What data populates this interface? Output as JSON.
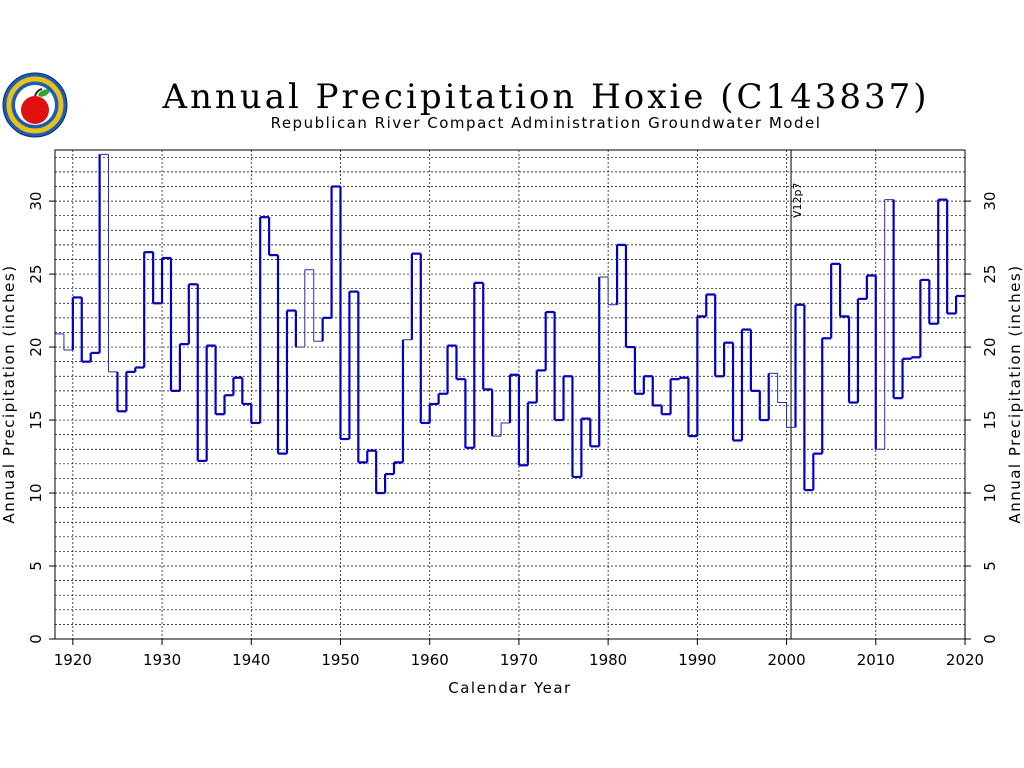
{
  "chart_data": {
    "type": "line",
    "step": true,
    "title": "Annual Precipitation Hoxie (C143837)",
    "subtitle": "Republican River Compact Administration Groundwater Model",
    "xlabel": "Calendar Year",
    "ylabel": "Annual Precipitation (inches)",
    "xlim": [
      1918,
      2020
    ],
    "ylim": [
      0,
      33.5
    ],
    "x_ticks": [
      "1920",
      "1930",
      "1940",
      "1950",
      "1960",
      "1970",
      "1980",
      "1990",
      "2000",
      "2010",
      "2020"
    ],
    "y_ticks": [
      "0",
      "5",
      "10",
      "15",
      "20",
      "25",
      "30"
    ],
    "grid": true,
    "colors": {
      "series_thick": "#0000c0",
      "series_thin": "#2a2aa8",
      "grid": "#000000"
    },
    "vertical_marker": {
      "x": 2000.5,
      "label": "V12p7"
    },
    "series": [
      {
        "x": [
          1918,
          1919,
          1920,
          1921,
          1922,
          1923,
          1924,
          1925,
          1926,
          1927,
          1928,
          1929,
          1930,
          1931,
          1932,
          1933,
          1934,
          1935,
          1936,
          1937,
          1938,
          1939,
          1940,
          1941,
          1942,
          1943,
          1944,
          1945,
          1946,
          1947,
          1948,
          1949,
          1950,
          1951,
          1952,
          1953,
          1954,
          1955,
          1956,
          1957,
          1958,
          1959,
          1960,
          1961,
          1962,
          1963,
          1964,
          1965,
          1966,
          1967,
          1968,
          1969,
          1970,
          1971,
          1972,
          1973,
          1974,
          1975,
          1976,
          1977,
          1978,
          1979,
          1980,
          1981,
          1982,
          1983,
          1984,
          1985,
          1986,
          1987,
          1988,
          1989,
          1990,
          1991,
          1992,
          1993,
          1994,
          1995,
          1996,
          1997,
          1998,
          1999,
          2000,
          2001,
          2002,
          2003,
          2004,
          2005,
          2006,
          2007,
          2008,
          2009,
          2010,
          2011,
          2012,
          2013,
          2014,
          2015,
          2016,
          2017,
          2018,
          2019
        ],
        "values": [
          20.9,
          19.8,
          23.4,
          19.0,
          19.6,
          33.2,
          18.3,
          15.6,
          18.3,
          18.6,
          26.5,
          23.0,
          26.1,
          17.0,
          20.2,
          24.3,
          12.2,
          20.1,
          15.4,
          16.7,
          17.9,
          16.1,
          14.8,
          28.9,
          26.3,
          12.7,
          22.5,
          20.0,
          25.3,
          20.4,
          22.0,
          31.0,
          13.7,
          23.8,
          12.1,
          12.9,
          10.0,
          11.3,
          12.1,
          20.5,
          26.4,
          14.8,
          16.1,
          16.8,
          20.1,
          17.8,
          13.1,
          24.4,
          17.1,
          13.9,
          14.8,
          18.1,
          11.9,
          16.2,
          18.4,
          22.4,
          15.0,
          18.0,
          11.1,
          15.1,
          13.2,
          24.8,
          22.9,
          27.0,
          20.0,
          16.8,
          18.0,
          16.0,
          15.4,
          17.8,
          17.9,
          13.9,
          22.1,
          23.6,
          18.0,
          20.3,
          13.6,
          21.2,
          17.0,
          15.0,
          18.2,
          16.2,
          14.5,
          22.9,
          10.2,
          12.7,
          20.6,
          25.7,
          22.1,
          16.2,
          23.3,
          24.9,
          13.0,
          30.1,
          16.5,
          19.2,
          19.3,
          24.6,
          21.6,
          30.1,
          22.3,
          23.5
        ],
        "thin_years": [
          1918,
          1919,
          1923,
          1924,
          1945,
          1946,
          1947,
          1957,
          1967,
          1968,
          1979,
          1980,
          1998,
          1999,
          2000,
          2010,
          2011
        ]
      }
    ]
  }
}
